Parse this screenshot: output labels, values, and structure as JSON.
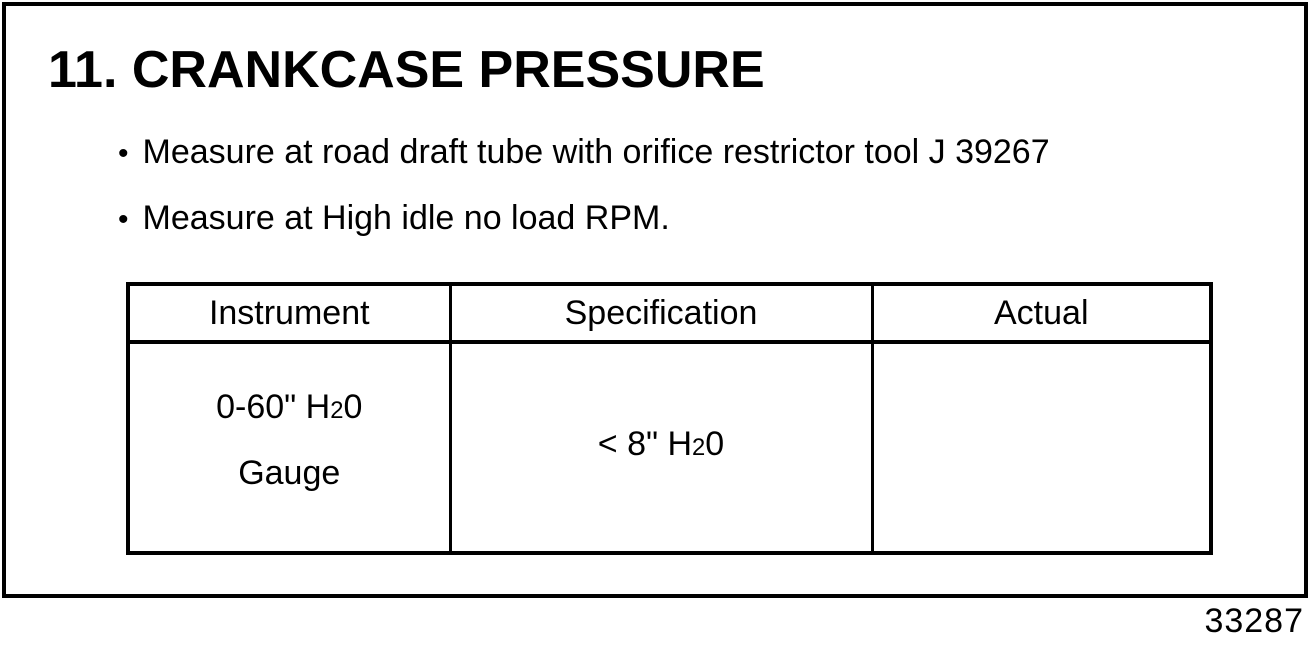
{
  "page": {
    "title": "11. CRANKCASE PRESSURE",
    "bullet_char": "•",
    "bullets": [
      "Measure at road draft tube with orifice restrictor tool J 39267",
      "Measure at High idle no load RPM."
    ],
    "figure_number": "33287"
  },
  "table": {
    "headers": [
      "Instrument",
      "Specification",
      "Actual"
    ],
    "row": {
      "instrument": {
        "line1_pre": "0-60\" H",
        "line1_small": "2",
        "line1_post": "0",
        "line2": "Gauge"
      },
      "specification": {
        "pre": "< 8\" H",
        "small": "2",
        "post": "0"
      },
      "actual": ""
    }
  }
}
